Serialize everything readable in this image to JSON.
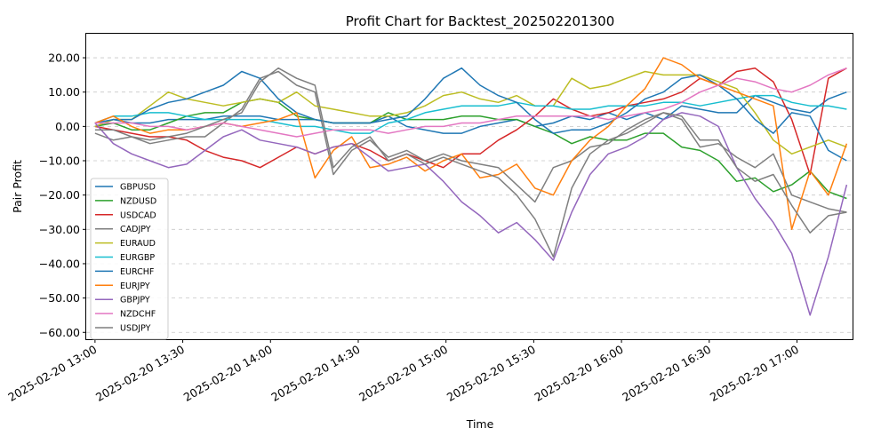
{
  "chart_data": {
    "type": "line",
    "title": "Profit Chart for Backtest_202502201300",
    "xlabel": "Time",
    "ylabel": "Pair Profit",
    "x_start": "2025-02-20 13:00",
    "x_end": "2025-02-20 17:17",
    "xlim": [
      "2025-02-20 12:57",
      "2025-02-20 17:19"
    ],
    "ylim": [
      -62,
      27
    ],
    "yticks": [
      20,
      10,
      0,
      -10,
      -20,
      -30,
      -40,
      -50,
      -60
    ],
    "ytick_labels": [
      "20.00",
      "10.00",
      "0.00",
      "−10.00",
      "−20.00",
      "−30.00",
      "−40.00",
      "−50.00",
      "−60.00"
    ],
    "xticks": [
      "2025-02-20 13:00",
      "2025-02-20 13:30",
      "2025-02-20 14:00",
      "2025-02-20 14:30",
      "2025-02-20 15:00",
      "2025-02-20 15:30",
      "2025-02-20 16:00",
      "2025-02-20 16:30",
      "2025-02-20 17:00"
    ],
    "grid": "horizontal dashed",
    "legend_position": "lower-left",
    "series": [
      {
        "name": "GBPUSD",
        "color": "#1f77b4",
        "values": [
          0,
          2,
          1,
          1,
          2,
          2,
          2,
          3,
          3,
          3,
          2,
          2,
          2,
          1,
          1,
          1,
          3,
          0,
          -1,
          -2,
          -2,
          0,
          1,
          2,
          0,
          1,
          3,
          2,
          4,
          2,
          4,
          2,
          6,
          5,
          4,
          4,
          9,
          7,
          5,
          4,
          8,
          10
        ]
      },
      {
        "name": "NZDUSD",
        "color": "#2ca02c",
        "values": [
          0,
          1,
          -1,
          -1,
          1,
          3,
          4,
          4,
          7,
          8,
          7,
          3,
          2,
          1,
          1,
          1,
          4,
          2,
          2,
          2,
          3,
          3,
          2,
          2,
          0,
          -2,
          -5,
          -3,
          -4,
          -4,
          -2,
          -2,
          -6,
          -7,
          -10,
          -16,
          -15,
          -19,
          -17,
          -13,
          -19,
          -21
        ]
      },
      {
        "name": "USDCAD",
        "color": "#d62728",
        "values": [
          0,
          -1,
          -2,
          -3,
          -3,
          -4,
          -7,
          -9,
          -10,
          -12,
          -9,
          -6,
          -8,
          -6,
          -5,
          -7,
          -10,
          -8,
          -10,
          -12,
          -8,
          -8,
          -4,
          -1,
          3,
          8,
          5,
          3,
          4,
          6,
          7,
          8,
          10,
          14,
          12,
          16,
          17,
          13,
          2,
          -14,
          14,
          17
        ]
      },
      {
        "name": "CADJPY",
        "color": "#7f7f7f",
        "values": [
          -2,
          -4,
          -3,
          -5,
          -4,
          -3,
          -3,
          1,
          5,
          14,
          16,
          12,
          10,
          -14,
          -7,
          -4,
          -9,
          -7,
          -10,
          -8,
          -10,
          -11,
          -12,
          -17,
          -22,
          -12,
          -10,
          -6,
          -5,
          -1,
          2,
          4,
          2,
          -6,
          -5,
          -9,
          -12,
          -8,
          -20,
          -22,
          -24,
          -25
        ]
      },
      {
        "name": "EURAUD",
        "color": "#bcbd22",
        "values": [
          0,
          2,
          2,
          6,
          10,
          8,
          7,
          6,
          7,
          8,
          7,
          10,
          6,
          5,
          4,
          3,
          3,
          4,
          6,
          9,
          10,
          8,
          7,
          9,
          6,
          6,
          14,
          11,
          12,
          14,
          16,
          15,
          15,
          15,
          13,
          11,
          4,
          -4,
          -8,
          -6,
          -4,
          -6
        ]
      },
      {
        "name": "EURGBP",
        "color": "#17becf",
        "values": [
          1,
          3,
          3,
          4,
          4,
          3,
          2,
          2,
          2,
          2,
          1,
          0,
          0,
          -1,
          -2,
          -2,
          1,
          2,
          4,
          5,
          6,
          6,
          6,
          7,
          6,
          6,
          5,
          5,
          6,
          6,
          6,
          7,
          7,
          6,
          7,
          8,
          9,
          9,
          7,
          6,
          6,
          5
        ]
      },
      {
        "name": "EURCHF",
        "color": "#1f77b4",
        "values": [
          1,
          2,
          2,
          5,
          7,
          8,
          10,
          12,
          16,
          14,
          8,
          4,
          2,
          1,
          1,
          1,
          2,
          3,
          8,
          14,
          17,
          12,
          9,
          7,
          2,
          -2,
          -1,
          -1,
          1,
          4,
          8,
          10,
          14,
          15,
          12,
          8,
          2,
          -2,
          4,
          3,
          -7,
          -10
        ]
      },
      {
        "name": "EURJPY",
        "color": "#ff7f0e",
        "values": [
          1,
          3,
          0,
          -2,
          -1,
          -1,
          0,
          1,
          0,
          1,
          2,
          4,
          -15,
          -7,
          -3,
          -12,
          -11,
          -9,
          -13,
          -10,
          -8,
          -15,
          -14,
          -11,
          -18,
          -20,
          -10,
          -4,
          0,
          6,
          11,
          20,
          18,
          14,
          12,
          10,
          8,
          6,
          -30,
          -13,
          -20,
          -5
        ]
      },
      {
        "name": "GBPJPY",
        "color": "#9467bd",
        "values": [
          1,
          -5,
          -8,
          -10,
          -12,
          -11,
          -7,
          -3,
          -1,
          -4,
          -5,
          -6,
          -8,
          -6,
          -5,
          -9,
          -13,
          -12,
          -11,
          -16,
          -22,
          -26,
          -31,
          -28,
          -33,
          -39,
          -25,
          -14,
          -8,
          -6,
          -3,
          2,
          4,
          3,
          0,
          -12,
          -21,
          -28,
          -37,
          -55,
          -38,
          -17
        ]
      },
      {
        "name": "NZDCHF",
        "color": "#e377c2",
        "values": [
          1,
          1,
          1,
          0,
          0,
          -1,
          0,
          1,
          0,
          -1,
          -2,
          -3,
          -2,
          -1,
          -1,
          -1,
          -2,
          -1,
          0,
          0,
          1,
          1,
          2,
          3,
          3,
          3,
          3,
          3,
          2,
          3,
          4,
          5,
          7,
          10,
          12,
          14,
          13,
          11,
          10,
          12,
          15,
          17
        ]
      },
      {
        "name": "USDJPY",
        "color": "#7f7f7f",
        "values": [
          -1,
          -1,
          -3,
          -4,
          -3,
          -2,
          0,
          2,
          4,
          13,
          17,
          14,
          12,
          -12,
          -6,
          -3,
          -10,
          -8,
          -11,
          -9,
          -11,
          -13,
          -15,
          -20,
          -27,
          -38,
          -18,
          -8,
          -4,
          -2,
          1,
          4,
          3,
          -4,
          -4,
          -12,
          -16,
          -14,
          -23,
          -31,
          -26,
          -25
        ]
      }
    ]
  }
}
